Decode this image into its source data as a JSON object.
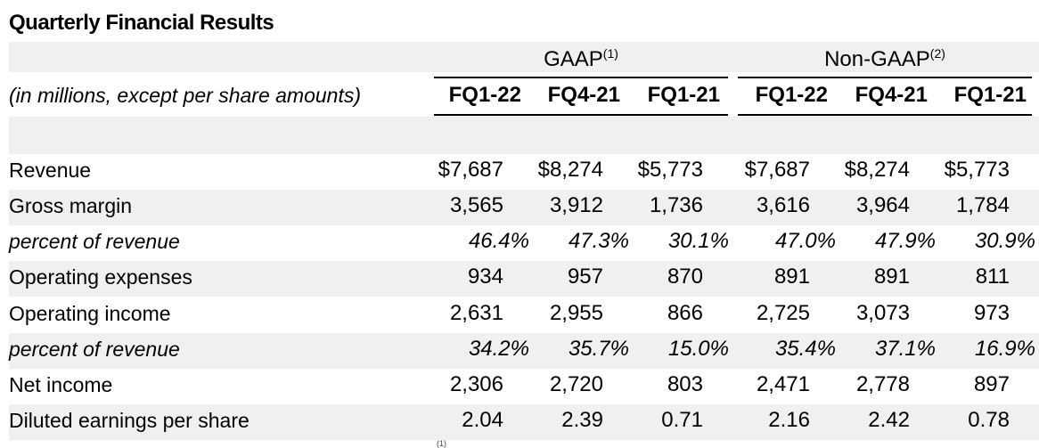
{
  "title": "Quarterly Financial Results",
  "units_label": "(in millions, except per share amounts)",
  "groups": [
    {
      "label": "GAAP",
      "note": "(1)"
    },
    {
      "label": "Non-GAAP",
      "note": "(2)"
    }
  ],
  "columns": [
    "FQ1-22",
    "FQ4-21",
    "FQ1-21",
    "FQ1-22",
    "FQ4-21",
    "FQ1-21"
  ],
  "rows": [
    {
      "label": "Revenue",
      "italic": false,
      "values": [
        "$7,687",
        "$8,274",
        "$5,773",
        "$7,687",
        "$8,274",
        "$5,773"
      ]
    },
    {
      "label": "Gross margin",
      "italic": false,
      "values": [
        "3,565",
        "3,912",
        "1,736",
        "3,616",
        "3,964",
        "1,784"
      ]
    },
    {
      "label": "percent of revenue",
      "italic": true,
      "values": [
        "46.4%",
        "47.3%",
        "30.1%",
        "47.0%",
        "47.9%",
        "30.9%"
      ]
    },
    {
      "label": "Operating expenses",
      "italic": false,
      "values": [
        "934",
        "957",
        "870",
        "891",
        "891",
        "811"
      ]
    },
    {
      "label": "Operating income",
      "italic": false,
      "values": [
        "2,631",
        "2,955",
        "866",
        "2,725",
        "3,073",
        "973"
      ]
    },
    {
      "label": "percent of revenue",
      "italic": true,
      "values": [
        "34.2%",
        "35.7%",
        "15.0%",
        "35.4%",
        "37.1%",
        "16.9%"
      ]
    },
    {
      "label": "Net income",
      "italic": false,
      "values": [
        "2,306",
        "2,720",
        "803",
        "2,471",
        "2,778",
        "897"
      ]
    },
    {
      "label": "Diluted earnings per share",
      "italic": false,
      "values": [
        "2.04",
        "2.39",
        "0.71",
        "2.16",
        "2.42",
        "0.78"
      ]
    }
  ],
  "footnote_marker": "(1)"
}
